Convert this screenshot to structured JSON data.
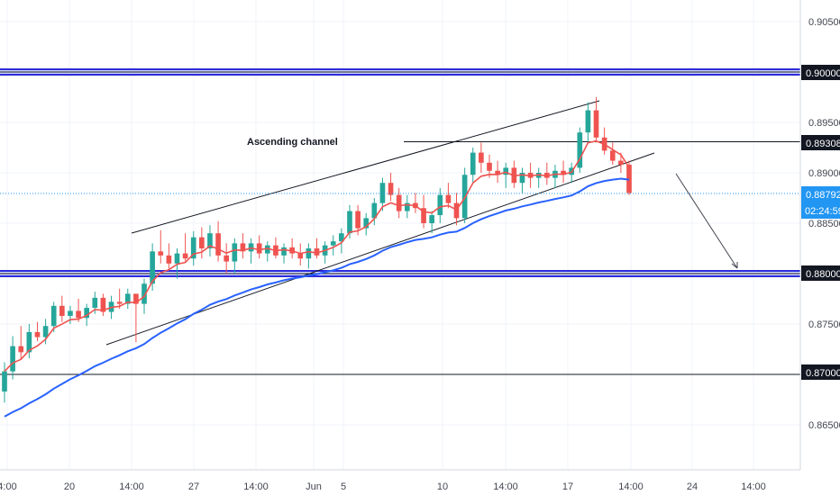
{
  "chart_data": {
    "type": "candlestick",
    "title": "",
    "colors": {
      "up": "#26a69a",
      "down": "#ef5350",
      "ema_fast": "#ef5350",
      "ema_slow": "#2962ff",
      "support_resistance": "#2b2bdb",
      "trendline": "#131722",
      "last_price_tag": "#2196f3"
    },
    "y_axis": {
      "ylim": [
        0.86,
        0.909
      ],
      "ticks": [
        "0.90500",
        "0.90000",
        "0.89500",
        "0.89000",
        "0.88500",
        "0.88000",
        "0.87500",
        "0.87000",
        "0.86500"
      ]
    },
    "x_axis": {
      "labels": [
        "4:00",
        "20",
        "14:00",
        "27",
        "14:00",
        "Jun",
        "5",
        "10",
        "14:00",
        "17",
        "14:00",
        "24",
        "14:00"
      ]
    },
    "price_tags": {
      "resistance": "0.90000",
      "support": "0.88000",
      "neckline": "0.89308",
      "level": "0.87000",
      "last_price": "0.88792",
      "countdown": "02:24:59"
    },
    "annotations": {
      "channel_label": "Ascending channel"
    },
    "horizontal_levels": [
      {
        "price": 0.9,
        "style": "double-blue"
      },
      {
        "price": 0.88,
        "style": "double-blue"
      },
      {
        "price": 0.87,
        "style": "thin-black"
      },
      {
        "price": 0.89308,
        "style": "thin-black-partial"
      }
    ],
    "candles": [
      {
        "o": 0.8683,
        "h": 0.8712,
        "l": 0.8672,
        "c": 0.8703
      },
      {
        "o": 0.8703,
        "h": 0.8738,
        "l": 0.8695,
        "c": 0.8728
      },
      {
        "o": 0.8728,
        "h": 0.8748,
        "l": 0.8715,
        "c": 0.8722
      },
      {
        "o": 0.8722,
        "h": 0.875,
        "l": 0.8716,
        "c": 0.8742
      },
      {
        "o": 0.8742,
        "h": 0.8752,
        "l": 0.8733,
        "c": 0.8737
      },
      {
        "o": 0.8737,
        "h": 0.8755,
        "l": 0.873,
        "c": 0.8748
      },
      {
        "o": 0.8748,
        "h": 0.8772,
        "l": 0.8742,
        "c": 0.8768
      },
      {
        "o": 0.8768,
        "h": 0.8778,
        "l": 0.8752,
        "c": 0.8758
      },
      {
        "o": 0.8758,
        "h": 0.8768,
        "l": 0.875,
        "c": 0.8763
      },
      {
        "o": 0.8763,
        "h": 0.8775,
        "l": 0.8752,
        "c": 0.8756
      },
      {
        "o": 0.8756,
        "h": 0.877,
        "l": 0.8748,
        "c": 0.8766
      },
      {
        "o": 0.8766,
        "h": 0.8782,
        "l": 0.876,
        "c": 0.8776
      },
      {
        "o": 0.8776,
        "h": 0.878,
        "l": 0.8758,
        "c": 0.8762
      },
      {
        "o": 0.8762,
        "h": 0.8778,
        "l": 0.8755,
        "c": 0.8772
      },
      {
        "o": 0.8772,
        "h": 0.8785,
        "l": 0.8765,
        "c": 0.877
      },
      {
        "o": 0.877,
        "h": 0.8785,
        "l": 0.8765,
        "c": 0.878
      },
      {
        "o": 0.878,
        "h": 0.878,
        "l": 0.8732,
        "c": 0.877
      },
      {
        "o": 0.877,
        "h": 0.8795,
        "l": 0.876,
        "c": 0.879
      },
      {
        "o": 0.879,
        "h": 0.883,
        "l": 0.8783,
        "c": 0.8822
      },
      {
        "o": 0.8822,
        "h": 0.8843,
        "l": 0.881,
        "c": 0.8818
      },
      {
        "o": 0.8818,
        "h": 0.883,
        "l": 0.8805,
        "c": 0.881
      },
      {
        "o": 0.881,
        "h": 0.8825,
        "l": 0.8795,
        "c": 0.882
      },
      {
        "o": 0.882,
        "h": 0.884,
        "l": 0.8812,
        "c": 0.8815
      },
      {
        "o": 0.8815,
        "h": 0.8842,
        "l": 0.8808,
        "c": 0.8836
      },
      {
        "o": 0.8836,
        "h": 0.8846,
        "l": 0.8815,
        "c": 0.8825
      },
      {
        "o": 0.8825,
        "h": 0.8848,
        "l": 0.8817,
        "c": 0.884
      },
      {
        "o": 0.884,
        "h": 0.8852,
        "l": 0.8812,
        "c": 0.8818
      },
      {
        "o": 0.8818,
        "h": 0.883,
        "l": 0.88,
        "c": 0.8812
      },
      {
        "o": 0.8812,
        "h": 0.8835,
        "l": 0.88,
        "c": 0.883
      },
      {
        "o": 0.883,
        "h": 0.884,
        "l": 0.8815,
        "c": 0.8822
      },
      {
        "o": 0.8822,
        "h": 0.8835,
        "l": 0.881,
        "c": 0.883
      },
      {
        "o": 0.883,
        "h": 0.8838,
        "l": 0.8815,
        "c": 0.882
      },
      {
        "o": 0.882,
        "h": 0.8832,
        "l": 0.8812,
        "c": 0.8828
      },
      {
        "o": 0.8828,
        "h": 0.8836,
        "l": 0.8815,
        "c": 0.8818
      },
      {
        "o": 0.8818,
        "h": 0.883,
        "l": 0.881,
        "c": 0.8826
      },
      {
        "o": 0.8826,
        "h": 0.8835,
        "l": 0.8815,
        "c": 0.882
      },
      {
        "o": 0.882,
        "h": 0.883,
        "l": 0.8808,
        "c": 0.8815
      },
      {
        "o": 0.8815,
        "h": 0.883,
        "l": 0.8805,
        "c": 0.8825
      },
      {
        "o": 0.8825,
        "h": 0.8835,
        "l": 0.8815,
        "c": 0.8818
      },
      {
        "o": 0.8818,
        "h": 0.8832,
        "l": 0.881,
        "c": 0.8828
      },
      {
        "o": 0.8828,
        "h": 0.8838,
        "l": 0.8818,
        "c": 0.8832
      },
      {
        "o": 0.8832,
        "h": 0.8845,
        "l": 0.882,
        "c": 0.884
      },
      {
        "o": 0.884,
        "h": 0.8868,
        "l": 0.8835,
        "c": 0.8862
      },
      {
        "o": 0.8862,
        "h": 0.8868,
        "l": 0.8838,
        "c": 0.8845
      },
      {
        "o": 0.8845,
        "h": 0.886,
        "l": 0.8838,
        "c": 0.8855
      },
      {
        "o": 0.8855,
        "h": 0.8875,
        "l": 0.8848,
        "c": 0.887
      },
      {
        "o": 0.887,
        "h": 0.8895,
        "l": 0.8862,
        "c": 0.889
      },
      {
        "o": 0.889,
        "h": 0.89,
        "l": 0.8872,
        "c": 0.8878
      },
      {
        "o": 0.8878,
        "h": 0.8885,
        "l": 0.8855,
        "c": 0.8862
      },
      {
        "o": 0.8862,
        "h": 0.8878,
        "l": 0.8855,
        "c": 0.887
      },
      {
        "o": 0.887,
        "h": 0.888,
        "l": 0.886,
        "c": 0.8865
      },
      {
        "o": 0.8865,
        "h": 0.8878,
        "l": 0.8845,
        "c": 0.885
      },
      {
        "o": 0.885,
        "h": 0.8862,
        "l": 0.884,
        "c": 0.8858
      },
      {
        "o": 0.8858,
        "h": 0.8885,
        "l": 0.885,
        "c": 0.8878
      },
      {
        "o": 0.8878,
        "h": 0.889,
        "l": 0.8865,
        "c": 0.887
      },
      {
        "o": 0.887,
        "h": 0.888,
        "l": 0.8848,
        "c": 0.8855
      },
      {
        "o": 0.8855,
        "h": 0.8905,
        "l": 0.885,
        "c": 0.8898
      },
      {
        "o": 0.8898,
        "h": 0.8925,
        "l": 0.889,
        "c": 0.892
      },
      {
        "o": 0.892,
        "h": 0.893,
        "l": 0.89,
        "c": 0.891
      },
      {
        "o": 0.891,
        "h": 0.8918,
        "l": 0.8895,
        "c": 0.8902
      },
      {
        "o": 0.8902,
        "h": 0.8912,
        "l": 0.889,
        "c": 0.8898
      },
      {
        "o": 0.8898,
        "h": 0.891,
        "l": 0.8885,
        "c": 0.8905
      },
      {
        "o": 0.8905,
        "h": 0.8912,
        "l": 0.8885,
        "c": 0.889
      },
      {
        "o": 0.889,
        "h": 0.8905,
        "l": 0.888,
        "c": 0.89
      },
      {
        "o": 0.89,
        "h": 0.891,
        "l": 0.8885,
        "c": 0.8895
      },
      {
        "o": 0.8895,
        "h": 0.8905,
        "l": 0.8885,
        "c": 0.89
      },
      {
        "o": 0.89,
        "h": 0.891,
        "l": 0.8888,
        "c": 0.8895
      },
      {
        "o": 0.8895,
        "h": 0.8908,
        "l": 0.8885,
        "c": 0.8902
      },
      {
        "o": 0.8902,
        "h": 0.8912,
        "l": 0.889,
        "c": 0.8898
      },
      {
        "o": 0.8898,
        "h": 0.891,
        "l": 0.889,
        "c": 0.8905
      },
      {
        "o": 0.8905,
        "h": 0.8945,
        "l": 0.89,
        "c": 0.894
      },
      {
        "o": 0.894,
        "h": 0.897,
        "l": 0.893,
        "c": 0.8962
      },
      {
        "o": 0.8962,
        "h": 0.8975,
        "l": 0.893,
        "c": 0.8935
      },
      {
        "o": 0.8935,
        "h": 0.8945,
        "l": 0.8918,
        "c": 0.8922
      },
      {
        "o": 0.8922,
        "h": 0.893,
        "l": 0.8908,
        "c": 0.8912
      },
      {
        "o": 0.8912,
        "h": 0.892,
        "l": 0.89,
        "c": 0.8908
      },
      {
        "o": 0.8908,
        "h": 0.8912,
        "l": 0.8878,
        "c": 0.888
      }
    ]
  }
}
